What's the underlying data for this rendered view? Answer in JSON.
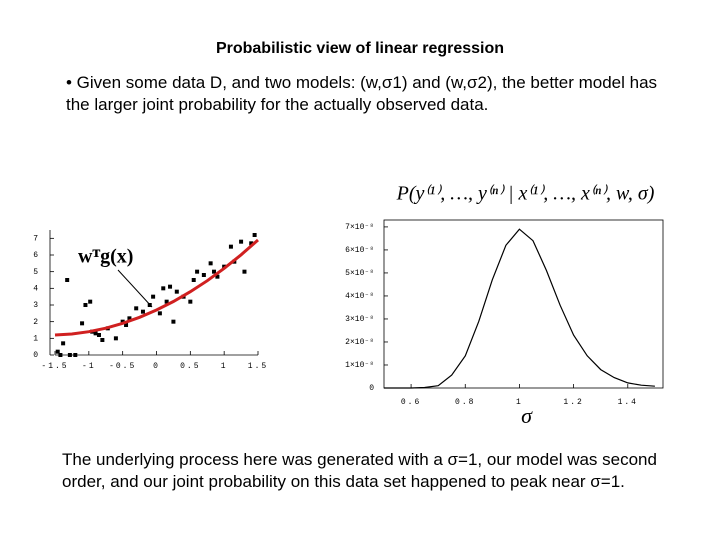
{
  "title": "Probabilistic view of linear regression",
  "intro": "• Given some data D, and two models: (w,σ1) and (w,σ2), the better model has the larger joint probability for the actually observed data.",
  "conclusion": "The underlying process here was generated with a σ=1, our model was second order, and our joint probability on this data set happened to peak near σ=1.",
  "chart_data": [
    {
      "type": "scatter",
      "annotation": "wᵀg(x)",
      "xlim": [
        -1.5,
        1.5
      ],
      "ylim": [
        0,
        7.5
      ],
      "xticks": [
        -1.5,
        -1,
        -0.5,
        0,
        0.5,
        1,
        1.5
      ],
      "yticks": [
        0,
        1,
        2,
        3,
        4,
        5,
        6,
        7
      ],
      "series": [
        {
          "type": "scatter",
          "color": "#000000",
          "x": [
            -1.46,
            -1.42,
            -1.38,
            -1.32,
            -1.28,
            -1.2,
            -1.1,
            -1.05,
            -0.98,
            -0.95,
            -0.9,
            -0.85,
            -0.8,
            -0.72,
            -0.6,
            -0.5,
            -0.45,
            -0.4,
            -0.3,
            -0.2,
            -0.1,
            -0.05,
            0.05,
            0.1,
            0.15,
            0.2,
            0.25,
            0.3,
            0.4,
            0.5,
            0.55,
            0.6,
            0.7,
            0.8,
            0.85,
            0.9,
            1.0,
            1.1,
            1.15,
            1.25,
            1.3,
            1.4,
            1.45
          ],
          "values": [
            0.2,
            0.0,
            0.7,
            4.5,
            0.0,
            0.0,
            1.9,
            3.0,
            3.2,
            1.4,
            1.3,
            1.2,
            0.9,
            1.6,
            1.0,
            2.0,
            1.8,
            2.2,
            2.8,
            2.6,
            3.0,
            3.5,
            2.5,
            4.0,
            3.2,
            4.1,
            2.0,
            3.8,
            3.5,
            3.2,
            4.5,
            5.0,
            4.8,
            5.5,
            5.0,
            4.7,
            5.3,
            6.5,
            5.6,
            6.8,
            5.0,
            6.7,
            7.2
          ]
        },
        {
          "type": "line",
          "color": "#d02020",
          "x": [
            -1.5,
            -1.25,
            -1,
            -0.75,
            -0.5,
            -0.25,
            0,
            0.25,
            0.5,
            0.75,
            1,
            1.25,
            1.5
          ],
          "values": [
            1.2,
            1.26,
            1.4,
            1.61,
            1.9,
            2.26,
            2.7,
            3.21,
            3.8,
            4.46,
            5.2,
            6.01,
            6.9
          ]
        }
      ]
    },
    {
      "type": "line",
      "title": "P(y⁽¹⁾, …, y⁽ⁿ⁾ | x⁽¹⁾, …, x⁽ⁿ⁾, w, σ)",
      "xlabel": "σ",
      "xlim": [
        0.5,
        1.53
      ],
      "ylim": [
        0,
        7.3e-08
      ],
      "xticks": [
        0.6,
        0.8,
        1,
        1.2,
        1.4
      ],
      "yticks": [
        0,
        {
          "value": 1e-08,
          "label": "1×10⁻⁸"
        },
        {
          "value": 2e-08,
          "label": "2×10⁻⁸"
        },
        {
          "value": 3e-08,
          "label": "3×10⁻⁸"
        },
        {
          "value": 4e-08,
          "label": "4×10⁻⁸"
        },
        {
          "value": 5e-08,
          "label": "5×10⁻⁸"
        },
        {
          "value": 6e-08,
          "label": "6×10⁻⁸"
        },
        {
          "value": 7e-08,
          "label": "7×10⁻⁸"
        }
      ],
      "series": [
        {
          "type": "line",
          "color": "#000000",
          "x": [
            0.5,
            0.55,
            0.6,
            0.65,
            0.7,
            0.75,
            0.8,
            0.85,
            0.9,
            0.95,
            1.0,
            1.05,
            1.1,
            1.15,
            1.2,
            1.25,
            1.3,
            1.35,
            1.4,
            1.45,
            1.5
          ],
          "values": [
            0,
            0,
            0,
            2e-10,
            1e-09,
            5.6e-09,
            1.4e-08,
            2.9e-08,
            4.7e-08,
            6.2e-08,
            6.9e-08,
            6.4e-08,
            5.1e-08,
            3.6e-08,
            2.3e-08,
            1.4e-08,
            8e-09,
            4.5e-09,
            2.2e-09,
            1.2e-09,
            8e-10
          ]
        }
      ]
    }
  ]
}
